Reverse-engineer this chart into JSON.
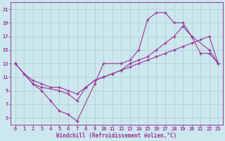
{
  "xlabel": "Windchill (Refroidissement éolien,°C)",
  "xlim": [
    -0.5,
    23.5
  ],
  "ylim": [
    4.0,
    22.0
  ],
  "xticks": [
    0,
    1,
    2,
    3,
    4,
    5,
    6,
    7,
    8,
    9,
    10,
    11,
    12,
    13,
    14,
    15,
    16,
    17,
    18,
    19,
    20,
    21,
    22,
    23
  ],
  "yticks": [
    5,
    7,
    9,
    11,
    13,
    15,
    17,
    19,
    21
  ],
  "background_color": "#cce8ee",
  "line_color": "#993399",
  "grid_color": "#aacccc",
  "line1_x": [
    0,
    1,
    2,
    3,
    4,
    5,
    6,
    7,
    9,
    10,
    12,
    13,
    14,
    15,
    16,
    17,
    18,
    19,
    20,
    21,
    22,
    23
  ],
  "line1_y": [
    13,
    11.5,
    10,
    9,
    7.5,
    6,
    5.5,
    4.5,
    10,
    13,
    13,
    13.5,
    15,
    19.5,
    20.5,
    20.5,
    19,
    19,
    17,
    14.5,
    14.5,
    13
  ],
  "line2_x": [
    0,
    2,
    3,
    5,
    6,
    7,
    8,
    9,
    10,
    11,
    12,
    13,
    14,
    15,
    16,
    17,
    18,
    19,
    20,
    22,
    23
  ],
  "line2_y": [
    13,
    10,
    9.5,
    9,
    8.5,
    7.5,
    9.5,
    10.5,
    11,
    11.5,
    12,
    13,
    13.5,
    14,
    15,
    16,
    17,
    18.5,
    17,
    15,
    13
  ],
  "line3_x": [
    0,
    1,
    2,
    3,
    4,
    5,
    6,
    7,
    8,
    9,
    10,
    11,
    12,
    13,
    14,
    15,
    16,
    17,
    18,
    19,
    20,
    21,
    22,
    23
  ],
  "line3_y": [
    13,
    11.5,
    10.5,
    10,
    9.5,
    9.5,
    9,
    8.5,
    9.5,
    10.5,
    11,
    11.5,
    12,
    12.5,
    13,
    13.5,
    14,
    14.5,
    15,
    15.5,
    16,
    16.5,
    17,
    13
  ],
  "tick_fontsize": 5.0,
  "xlabel_fontsize": 5.5
}
